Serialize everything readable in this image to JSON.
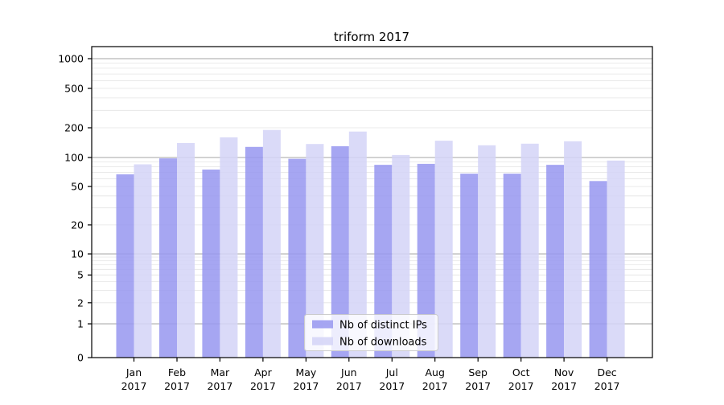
{
  "chart_data": {
    "type": "bar",
    "title": "triform 2017",
    "categories": [
      "Jan",
      "Feb",
      "Mar",
      "Apr",
      "May",
      "Jun",
      "Jul",
      "Aug",
      "Sep",
      "Oct",
      "Nov",
      "Dec"
    ],
    "category_year": "2017",
    "series": [
      {
        "name": "Nb of distinct IPs",
        "color": "#9797f0",
        "values": [
          67,
          98,
          75,
          128,
          97,
          130,
          84,
          86,
          68,
          68,
          84,
          57
        ]
      },
      {
        "name": "Nb of downloads",
        "color": "#d4d4f7",
        "values": [
          85,
          140,
          160,
          190,
          137,
          183,
          106,
          148,
          133,
          138,
          146,
          93
        ]
      }
    ],
    "xlabel": "",
    "ylabel": "",
    "yscale": "log (linear segment between 0 and 1)",
    "y_ticks": [
      0,
      1,
      2,
      5,
      10,
      20,
      50,
      100,
      200,
      500,
      1000
    ],
    "ylim": [
      0,
      1300
    ],
    "grid": true,
    "legend_position": "inside lower center"
  },
  "colors": {
    "grid_major": "#a6a6a6",
    "grid_minor": "#e4e4e4",
    "axis": "#000000",
    "legend_border": "#cccccc",
    "background": "#ffffff"
  }
}
